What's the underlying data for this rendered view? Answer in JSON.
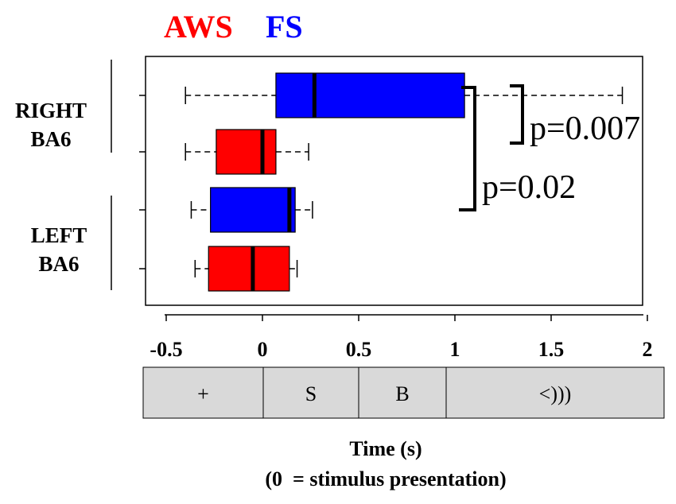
{
  "chart_data": {
    "type": "boxplot",
    "orientation": "horizontal",
    "legend": [
      {
        "label": "AWS",
        "color": "#ff0000"
      },
      {
        "label": "FS",
        "color": "#0000ff"
      }
    ],
    "group_labels": [
      {
        "line1": "RIGHT",
        "line2": "BA6"
      },
      {
        "line1": "LEFT",
        "line2": "BA6"
      }
    ],
    "xlim": [
      -0.65,
      2.05
    ],
    "xticks": [
      -0.5,
      0,
      0.5,
      1,
      1.5,
      2
    ],
    "xtick_labels": [
      "-0.5",
      "0",
      "0.5",
      "1",
      "1.5",
      "2"
    ],
    "boxes": [
      {
        "group": "RIGHT BA6",
        "series": "FS",
        "color": "#0000ff",
        "whisker_low": -0.4,
        "q1": 0.07,
        "median": 0.27,
        "q3": 1.05,
        "whisker_high": 1.87
      },
      {
        "group": "RIGHT BA6",
        "series": "AWS",
        "color": "#ff0000",
        "whisker_low": -0.4,
        "q1": -0.24,
        "median": 0.0,
        "q3": 0.07,
        "whisker_high": 0.24
      },
      {
        "group": "LEFT BA6",
        "series": "FS",
        "color": "#0000ff",
        "whisker_low": -0.37,
        "q1": -0.27,
        "median": 0.14,
        "q3": 0.17,
        "whisker_high": 0.26
      },
      {
        "group": "LEFT BA6",
        "series": "AWS",
        "color": "#ff0000",
        "whisker_low": -0.35,
        "q1": -0.28,
        "median": -0.05,
        "q3": 0.14,
        "whisker_high": 0.18
      }
    ],
    "annotations": [
      {
        "text": "p=0.007",
        "between": [
          0,
          1
        ]
      },
      {
        "text": "p=0.02",
        "between": [
          0,
          2
        ]
      }
    ],
    "timeline": [
      {
        "label": "+",
        "start": -0.65,
        "end": 0
      },
      {
        "label": "S",
        "start": 0,
        "end": 0.5
      },
      {
        "label": "B",
        "start": 0.5,
        "end": 0.95
      },
      {
        "label": "<)))",
        "start": 0.95,
        "end": 2.05
      }
    ],
    "xlabel": "Time (s)",
    "xlabel_note": "(0  = stimulus presentation)"
  }
}
